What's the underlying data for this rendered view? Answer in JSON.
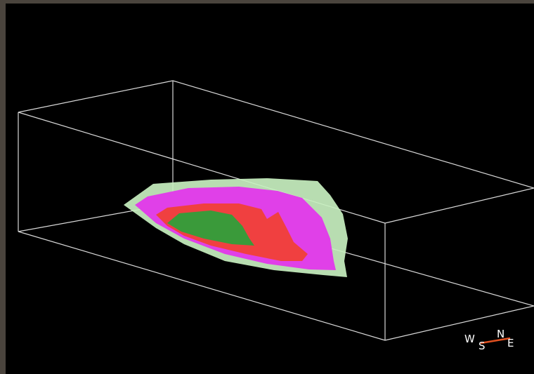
{
  "compass": {
    "west": "W",
    "south": "S",
    "north": "N",
    "east": "E"
  }
}
